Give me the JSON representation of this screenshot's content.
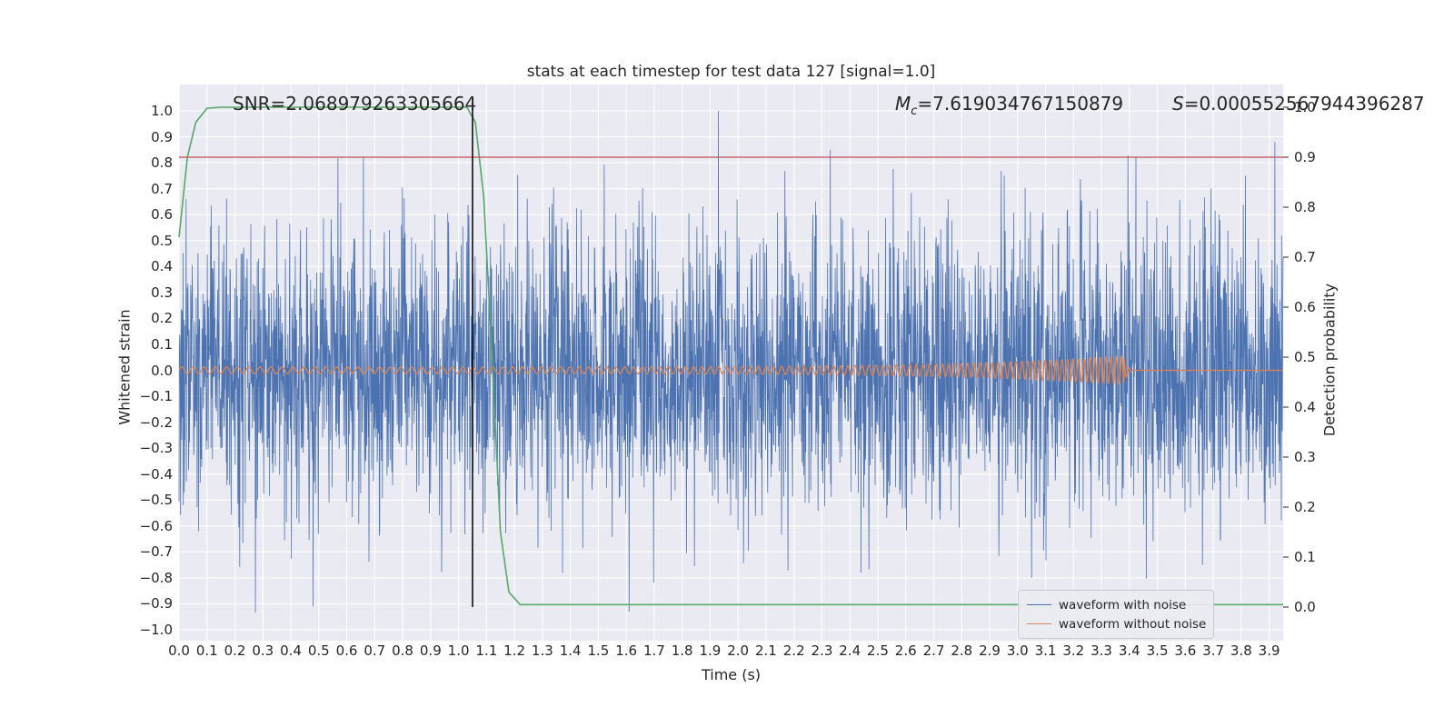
{
  "figure": {
    "background": "#ffffff",
    "axes_background": "#eaeaf2",
    "grid_color": "#ffffff",
    "text_color": "#262626"
  },
  "chart_data": {
    "type": "line",
    "title": "stats at each timestep for test data 127 [signal=1.0]",
    "xlabel": "Time (s)",
    "ylabel_left": "Whitened strain",
    "ylabel_right": "Detection probability",
    "xlim": [
      0.0,
      3.95
    ],
    "ylim_left": [
      -1.0,
      1.0
    ],
    "ylim_right": [
      0.0,
      1.0
    ],
    "grid": true,
    "xticks": [
      "0.0",
      "0.1",
      "0.2",
      "0.3",
      "0.4",
      "0.5",
      "0.6",
      "0.7",
      "0.8",
      "0.9",
      "1.0",
      "1.1",
      "1.2",
      "1.3",
      "1.4",
      "1.5",
      "1.6",
      "1.7",
      "1.8",
      "1.9",
      "2.0",
      "2.1",
      "2.2",
      "2.3",
      "2.4",
      "2.5",
      "2.6",
      "2.7",
      "2.8",
      "2.9",
      "3.0",
      "3.1",
      "3.2",
      "3.3",
      "3.4",
      "3.5",
      "3.6",
      "3.7",
      "3.8",
      "3.9"
    ],
    "yticks_left": [
      "1.0",
      "0.9",
      "0.8",
      "0.7",
      "0.6",
      "0.5",
      "0.4",
      "0.3",
      "0.2",
      "0.1",
      "0.0",
      "−0.1",
      "−0.2",
      "−0.3",
      "−0.4",
      "−0.5",
      "−0.6",
      "−0.7",
      "−0.8",
      "−0.9",
      "−1.0"
    ],
    "yticks_right": [
      "1.0",
      "0.9",
      "0.8",
      "0.7",
      "0.6",
      "0.5",
      "0.4",
      "0.3",
      "0.2",
      "0.1",
      "0.0"
    ],
    "series": [
      {
        "name": "waveform with noise",
        "color": "#4c72b0",
        "axis": "left",
        "kind": "gaussian_noise",
        "mean": 0.0,
        "std": 0.27,
        "samples": 3600,
        "seed": 127,
        "notable_peaks": [
          {
            "t": 1.93,
            "v": 1.0
          },
          {
            "t": 2.33,
            "v": 0.85
          },
          {
            "t": 3.92,
            "v": 0.88
          },
          {
            "t": 0.66,
            "v": 0.82
          },
          {
            "t": 0.48,
            "v": -0.91
          },
          {
            "t": 1.61,
            "v": -0.93
          },
          {
            "t": 2.44,
            "v": -0.78
          },
          {
            "t": 3.05,
            "v": -0.8
          }
        ]
      },
      {
        "name": "waveform without noise",
        "color": "#dd8452",
        "axis": "left",
        "kind": "chirp",
        "base_amplitude": 0.013,
        "peak_amplitude": 0.055,
        "base_freq_hz": 25,
        "freq_growth": 2.5,
        "merger_time_s": 3.38,
        "post_merger_value": 0.0
      },
      {
        "name": "detection probability",
        "color": "#55a868",
        "axis": "right",
        "kind": "line",
        "points": [
          [
            0.0,
            0.74
          ],
          [
            0.03,
            0.9
          ],
          [
            0.06,
            0.97
          ],
          [
            0.1,
            0.998
          ],
          [
            0.15,
            1.0
          ],
          [
            1.03,
            1.0
          ],
          [
            1.06,
            0.97
          ],
          [
            1.09,
            0.82
          ],
          [
            1.12,
            0.5
          ],
          [
            1.15,
            0.15
          ],
          [
            1.18,
            0.03
          ],
          [
            1.22,
            0.005
          ],
          [
            3.95,
            0.005
          ]
        ]
      },
      {
        "name": "detection threshold",
        "color": "#c44e52",
        "axis": "right",
        "kind": "hline",
        "value": 0.9
      },
      {
        "name": "event time marker",
        "color": "#000000",
        "axis": "right",
        "kind": "vline",
        "x": 1.05,
        "span": [
          0.0,
          1.005
        ]
      }
    ],
    "legend": {
      "position": "lower right",
      "entries": [
        "waveform with noise",
        "waveform without noise"
      ]
    },
    "annotations": {
      "snr": {
        "text": "SNR=2.068979263305664"
      },
      "chirp_mass": {
        "symbol": "M",
        "subscript": "c",
        "value": "=7.619034767150879"
      },
      "s_stat": {
        "symbol": "S",
        "value": "=0.000552567944396287"
      }
    }
  }
}
